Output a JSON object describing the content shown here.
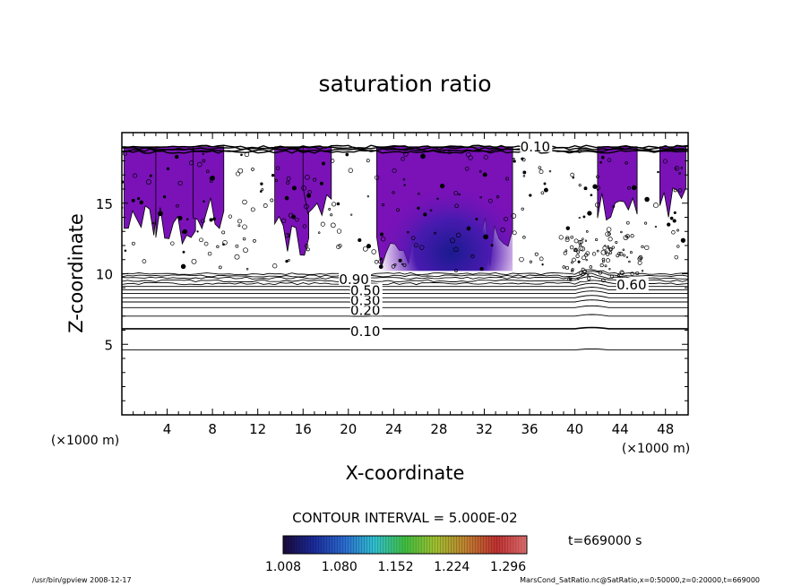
{
  "chart_data": {
    "type": "heatmap",
    "title": "saturation ratio",
    "xlabel": "X-coordinate",
    "ylabel": "Z-coordinate",
    "x_unit": "(×1000 m)",
    "z_unit": "(×1000 m)",
    "xlim": [
      0,
      50
    ],
    "ylim": [
      0,
      20
    ],
    "x_ticks": [
      4,
      8,
      12,
      16,
      20,
      24,
      28,
      32,
      36,
      40,
      44,
      48
    ],
    "y_ticks": [
      5,
      10,
      15
    ],
    "contour_interval_label": "CONTOUR INTERVAL = 5.000E-02",
    "contour_labels": [
      {
        "text": "0.10",
        "x": 21.5,
        "z": 5.9
      },
      {
        "text": "0.20",
        "x": 21.5,
        "z": 7.4
      },
      {
        "text": "0.30",
        "x": 21.5,
        "z": 8.1
      },
      {
        "text": "0.50",
        "x": 21.5,
        "z": 8.8
      },
      {
        "text": "0.90",
        "x": 20.5,
        "z": 9.6
      },
      {
        "text": "0.60",
        "x": 45.0,
        "z": 9.2
      },
      {
        "text": "0.10",
        "x": 36.5,
        "z": 19.0
      }
    ],
    "colorbar": {
      "range": [
        1.008,
        1.32
      ],
      "tick_labels": [
        "1.008",
        "1.080",
        "1.152",
        "1.224",
        "1.296"
      ],
      "colors": [
        "#1a0a3a",
        "#1a2a9a",
        "#2a6ad0",
        "#30c0d0",
        "#40c040",
        "#a0c030",
        "#c08030",
        "#c03030",
        "#e07070"
      ]
    },
    "supersaturated_regions": [
      {
        "x": [
          0.2,
          3.2
        ],
        "z": [
          12.5,
          19.0
        ]
      },
      {
        "x": [
          3.0,
          6.5
        ],
        "z": [
          11.5,
          19.0
        ]
      },
      {
        "x": [
          6.3,
          9.0
        ],
        "z": [
          13.0,
          19.0
        ]
      },
      {
        "x": [
          13.5,
          16.5
        ],
        "z": [
          11.0,
          19.0
        ]
      },
      {
        "x": [
          16.0,
          18.5
        ],
        "z": [
          14.0,
          19.0
        ]
      },
      {
        "x": [
          22.5,
          34.5
        ],
        "z": [
          10.2,
          19.0
        ]
      },
      {
        "x": [
          42.0,
          45.5
        ],
        "z": [
          13.5,
          19.0
        ]
      },
      {
        "x": [
          47.5,
          49.8
        ],
        "z": [
          14.0,
          19.0
        ]
      }
    ],
    "time_label": "t=669000 s"
  },
  "footer": {
    "left": "/usr/bin/gpview   2008-12-17",
    "right": "MarsCond_SatRatio.nc@SatRatio,x=0:50000,z=0:20000,t=669000"
  },
  "colors": {
    "fill": "#7a12b8",
    "fill_dark": "#2a1aa0",
    "line": "#000000"
  }
}
